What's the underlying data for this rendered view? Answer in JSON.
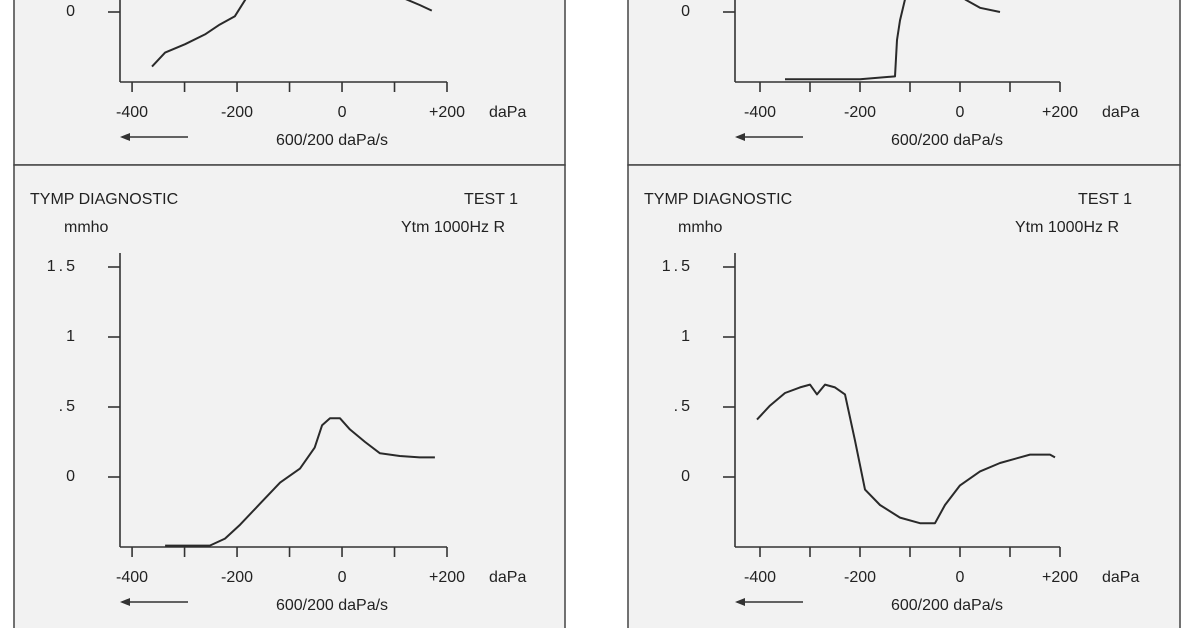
{
  "chart_data": [
    {
      "type": "line",
      "x": [
        -362,
        -337,
        -299,
        -261,
        -233,
        -204,
        -179,
        null,
        110,
        148,
        171
      ],
      "values": [
        -0.39,
        -0.29,
        -0.23,
        -0.16,
        -0.09,
        -0.03,
        0.12,
        null,
        0.11,
        0.05,
        0.01
      ],
      "xlim": [
        -423,
        200
      ],
      "ylim": [
        -0.5,
        1.6
      ],
      "xticks": [
        -400,
        {
          "value": -300,
          "label": null
        },
        -200,
        {
          "value": -100,
          "label": null
        },
        0,
        {
          "value": 100,
          "label": null
        },
        {
          "value": 200,
          "label": "+200"
        }
      ],
      "yticks": [
        0
      ],
      "x_unit": "daPa",
      "xlabel": "600/200 daPa/s"
    },
    {
      "type": "line",
      "x": [
        -350,
        -200,
        -130,
        -126,
        -120,
        -110,
        null,
        10,
        40,
        80
      ],
      "values": [
        -0.48,
        -0.48,
        -0.46,
        -0.2,
        -0.06,
        0.09,
        null,
        0.09,
        0.03,
        0.0
      ],
      "xlim": [
        -450,
        200
      ],
      "ylim": [
        -0.5,
        1.6
      ],
      "xticks": [
        -400,
        {
          "value": -300,
          "label": null
        },
        -200,
        {
          "value": -100,
          "label": null
        },
        0,
        {
          "value": 100,
          "label": null
        },
        {
          "value": 200,
          "label": "+200"
        }
      ],
      "yticks": [
        0
      ],
      "x_unit": "daPa",
      "xlabel": "600/200 daPa/s"
    },
    {
      "type": "line",
      "title": "TYMP DIAGNOSTIC",
      "test": "TEST 1",
      "ylabel": "mmho",
      "subtitle": "Ytm 1000Hz R",
      "x": [
        -337,
        -252,
        -223,
        -194,
        -156,
        -118,
        -80,
        -52,
        -38,
        -23,
        -4,
        15,
        44,
        72,
        110,
        148,
        177
      ],
      "values": [
        -0.49,
        -0.49,
        -0.44,
        -0.34,
        -0.19,
        -0.04,
        0.06,
        0.21,
        0.37,
        0.42,
        0.42,
        0.34,
        0.25,
        0.17,
        0.15,
        0.14,
        0.14
      ],
      "xlim": [
        -423,
        200
      ],
      "ylim": [
        -0.5,
        1.6
      ],
      "xticks": [
        -400,
        {
          "value": -300,
          "label": null
        },
        -200,
        {
          "value": -100,
          "label": null
        },
        0,
        {
          "value": 100,
          "label": null
        },
        {
          "value": 200,
          "label": "+200"
        }
      ],
      "yticks": [
        0,
        {
          "value": 0.5,
          "label": ".5"
        },
        1,
        {
          "value": 1.5,
          "label": "1.5"
        }
      ],
      "x_unit": "daPa",
      "xlabel": "600/200 daPa/s"
    },
    {
      "type": "line",
      "title": "TYMP DIAGNOSTIC",
      "test": "TEST 1",
      "ylabel": "mmho",
      "subtitle": "Ytm 1000Hz R",
      "x": [
        -406,
        -380,
        -350,
        -320,
        -300,
        -286,
        -270,
        -250,
        -230,
        -210,
        -190,
        -160,
        -120,
        -80,
        -50,
        -30,
        0,
        40,
        80,
        140,
        180,
        190
      ],
      "values": [
        0.41,
        0.51,
        0.6,
        0.64,
        0.66,
        0.59,
        0.66,
        0.64,
        0.59,
        0.26,
        -0.09,
        -0.2,
        -0.29,
        -0.33,
        -0.33,
        -0.2,
        -0.06,
        0.04,
        0.1,
        0.16,
        0.16,
        0.14
      ],
      "xlim": [
        -450,
        200
      ],
      "ylim": [
        -0.5,
        1.6
      ],
      "xticks": [
        -400,
        {
          "value": -300,
          "label": null
        },
        -200,
        {
          "value": -100,
          "label": null
        },
        0,
        {
          "value": 100,
          "label": null
        },
        {
          "value": 200,
          "label": "+200"
        }
      ],
      "yticks": [
        0,
        {
          "value": 0.5,
          "label": ".5"
        },
        1,
        {
          "value": 1.5,
          "label": "1.5"
        }
      ],
      "x_unit": "daPa",
      "xlabel": "600/200 daPa/s"
    }
  ]
}
